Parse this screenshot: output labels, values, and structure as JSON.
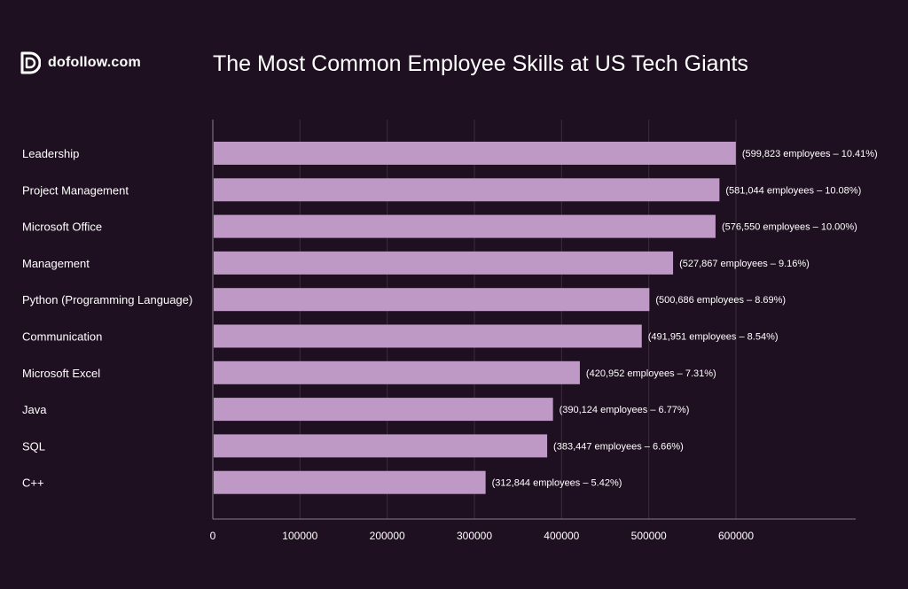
{
  "brand": {
    "name": "dofollow.com",
    "logo_icon": "dofollow-logo-icon"
  },
  "colors": {
    "background": "#1f1021",
    "bar": "#bf99c6",
    "grid": "#3b2b3d",
    "axis": "#8a7d8c",
    "text": "#ffffff"
  },
  "chart_data": {
    "type": "bar",
    "orientation": "horizontal",
    "title": "The Most Common Employee Skills at US Tech Giants",
    "xlabel": "",
    "ylabel": "",
    "xlim": [
      0,
      730000
    ],
    "grid": true,
    "x_ticks": [
      0,
      100000,
      200000,
      300000,
      400000,
      500000,
      600000
    ],
    "x_tick_labels": [
      "0",
      "100000",
      "200000",
      "300000",
      "400000",
      "500000",
      "600000"
    ],
    "categories": [
      "Leadership",
      "Project Management",
      "Microsoft Office",
      "Management",
      "Python (Programming Language)",
      "Communication",
      "Microsoft Excel",
      "Java",
      "SQL",
      "C++"
    ],
    "values": [
      599823,
      581044,
      576550,
      527867,
      500686,
      491951,
      420952,
      390124,
      383447,
      312844
    ],
    "data_labels": [
      "(599,823 employees – 10.41%)",
      "(581,044 employees – 10.08%)",
      "(576,550 employees – 10.00%)",
      "(527,867 employees – 9.16%)",
      "(500,686 employees – 8.69%)",
      "(491,951 employees – 8.54%)",
      "(420,952 employees – 7.31%)",
      "(390,124 employees – 6.77%)",
      "(383,447 employees – 6.66%)",
      "(312,844 employees – 5.42%)"
    ]
  }
}
